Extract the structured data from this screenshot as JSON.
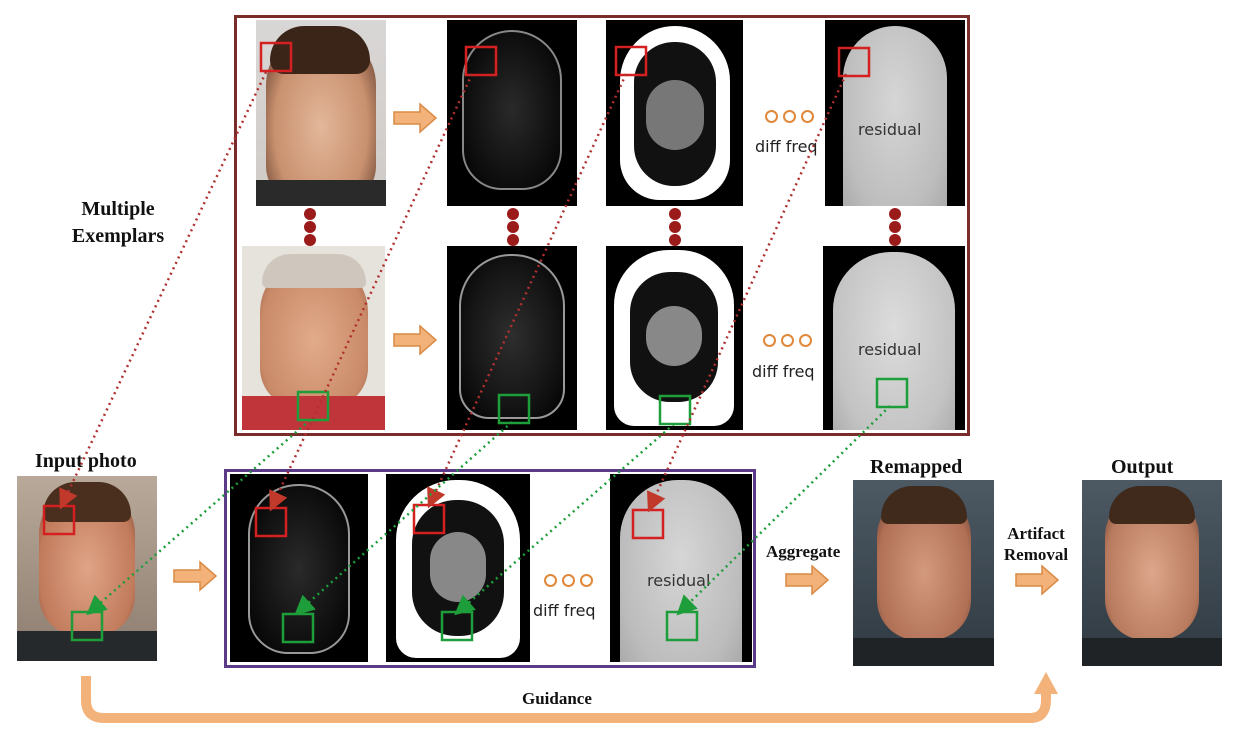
{
  "labels": {
    "multiple_exemplars_line1": "Multiple",
    "multiple_exemplars_line2": "Exemplars",
    "input_photo": "Input photo",
    "remapped": "Remapped",
    "output": "Output",
    "aggregate": "Aggregate",
    "artifact_removal_line1": "Artifact",
    "artifact_removal_line2": "Removal",
    "guidance": "Guidance"
  },
  "panels": {
    "residual_top": "residual",
    "residual_mid": "residual",
    "residual_bot": "residual",
    "diff_freq_top": "diff freq",
    "diff_freq_mid": "diff freq",
    "diff_freq_bot": "diff freq"
  },
  "colors": {
    "exemplar_box": "#7a2c2a",
    "input_box": "#5b3a87",
    "red_patch": "#d42020",
    "green_patch": "#1e9e3a",
    "arrow": "#f0a868",
    "arrow_stroke": "#d98a45",
    "red_dots": "#9b1b1b",
    "green_dots": "#1e9e3a"
  },
  "icons": {
    "flow_arrow": "right-arrow-icon",
    "ellipsis": "ellipsis-icon",
    "vertical_ellipsis": "vertical-ellipsis-icon"
  }
}
